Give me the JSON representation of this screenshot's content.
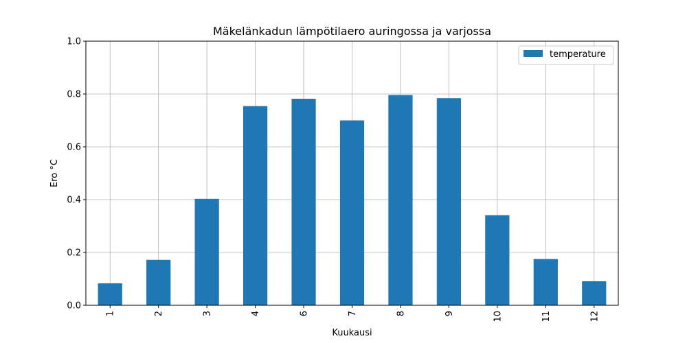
{
  "chart_data": {
    "type": "bar",
    "title": "Mäkelänkadun lämpötilaero auringossa ja varjossa",
    "xlabel": "Kuukausi",
    "ylabel": "Ero °C",
    "categories": [
      "1",
      "2",
      "3",
      "4",
      "6",
      "7",
      "8",
      "9",
      "10",
      "11",
      "12"
    ],
    "series": [
      {
        "name": "temperature",
        "color": "#1f77b4",
        "values": [
          0.083,
          0.172,
          0.403,
          0.754,
          0.782,
          0.7,
          0.796,
          0.784,
          0.341,
          0.175,
          0.091
        ]
      }
    ],
    "ylim": [
      0,
      1.0
    ],
    "yticks": [
      0.0,
      0.2,
      0.4,
      0.6,
      0.8,
      1.0
    ],
    "ytick_labels": [
      "0.0",
      "0.2",
      "0.4",
      "0.6",
      "0.8",
      "1.0"
    ],
    "grid": true,
    "legend_position": "top-right"
  }
}
